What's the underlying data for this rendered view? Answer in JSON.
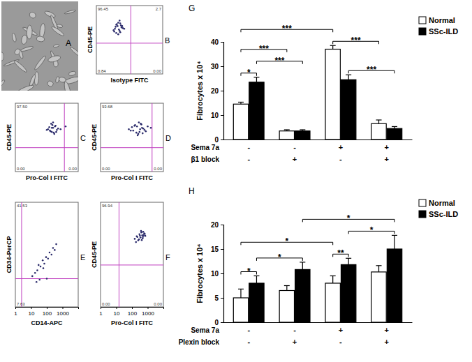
{
  "chart_data": [
    {
      "type": "image",
      "panel": "A"
    },
    {
      "type": "scatter",
      "panel": "B",
      "x_label": "Isotype FITC",
      "y_label": "CD45-PE",
      "xlim": [
        0,
        100
      ],
      "ylim": [
        0,
        100
      ],
      "tick_labels": false,
      "color": "#2b2b6b",
      "gate": {
        "x": 52,
        "y": 45
      },
      "quadrants": {
        "top_left": "96.45",
        "top_right": "2.7",
        "bottom_left": "0.84",
        "bottom_right": "0.00"
      },
      "x": [
        28,
        32,
        35,
        30,
        38,
        26,
        33,
        40,
        36,
        29,
        31,
        34,
        37,
        42,
        27,
        35,
        30,
        39,
        33,
        36
      ],
      "y": [
        66,
        70,
        63,
        72,
        68,
        64,
        75,
        67,
        61,
        69,
        73,
        65,
        71,
        66,
        62,
        78,
        60,
        70,
        58,
        74
      ]
    },
    {
      "type": "scatter",
      "panel": "C",
      "x_label": "Pro-Col I FITC",
      "y_label": "CD45-PE",
      "xlim": [
        0,
        100
      ],
      "ylim": [
        0,
        100
      ],
      "tick_labels": false,
      "color": "#2b2b6b",
      "gate": {
        "x": 78,
        "y": 35
      },
      "quadrants": {
        "top_left": "97.50",
        "bottom_left": "0.00",
        "bottom_right": "0.00"
      },
      "x": [
        55,
        60,
        58,
        63,
        52,
        66,
        57,
        61,
        54,
        68,
        59,
        62,
        56,
        64,
        50,
        60,
        65,
        58,
        72,
        80
      ],
      "y": [
        60,
        64,
        58,
        66,
        62,
        61,
        70,
        57,
        65,
        63,
        68,
        55,
        59,
        67,
        61,
        72,
        58,
        64,
        62,
        66
      ]
    },
    {
      "type": "scatter",
      "panel": "D",
      "x_label": "Pro-Col I FITC",
      "y_label": "CD45-PE",
      "xlim": [
        0,
        100
      ],
      "ylim": [
        0,
        100
      ],
      "tick_labels": false,
      "color": "#2b2b6b",
      "gate": {
        "x": 82,
        "y": 35
      },
      "quadrants": {
        "top_left": "93.68",
        "bottom_left": "0.00",
        "bottom_right": "0.00"
      },
      "x": [
        45,
        52,
        58,
        62,
        66,
        70,
        55,
        60,
        64,
        68,
        72,
        50,
        57,
        63,
        75,
        48,
        61,
        67,
        80,
        54,
        59,
        65
      ],
      "y": [
        62,
        60,
        66,
        58,
        64,
        61,
        68,
        55,
        70,
        63,
        59,
        65,
        57,
        62,
        66,
        60,
        72,
        56,
        64,
        67,
        53,
        69
      ]
    },
    {
      "type": "scatter",
      "panel": "E",
      "x_label": "CD14-APC",
      "y_label": "CD34-PerCP",
      "log": true,
      "xlim": [
        1,
        10000
      ],
      "ylim": [
        1,
        10000
      ],
      "xticks": [
        1,
        10,
        100,
        1000
      ],
      "tick_labels": "x",
      "color": "#2b2b6b",
      "gate": {
        "x": 2.5,
        "y": 12
      },
      "quadrants": {
        "top_left": "41.53",
        "bottom_left": "7.63"
      },
      "x": [
        12,
        18,
        25,
        30,
        40,
        55,
        70,
        90,
        120,
        150,
        200,
        250,
        320,
        400,
        22,
        35,
        60,
        100
      ],
      "y": [
        15,
        20,
        25,
        40,
        35,
        60,
        45,
        80,
        70,
        120,
        100,
        180,
        150,
        250,
        9,
        11,
        30,
        12
      ]
    },
    {
      "type": "scatter",
      "panel": "F",
      "x_label": "Pro-Col I FITC",
      "y_label": "CD45-PE",
      "log": true,
      "xlim": [
        1,
        10000
      ],
      "ylim": [
        1,
        10000
      ],
      "xticks": [
        1,
        10,
        100,
        1000
      ],
      "tick_labels": "x",
      "color": "#2b2b6b",
      "gate": {
        "x": 15,
        "y": 40
      },
      "quadrants": {
        "top_left": "96.94",
        "bottom_left": "0.00",
        "bottom_right": "0.00"
      },
      "x": [
        150,
        200,
        250,
        300,
        350,
        400,
        450,
        500,
        600,
        700,
        180,
        280,
        380,
        480,
        550,
        650,
        220,
        320,
        420,
        520
      ],
      "y": [
        400,
        500,
        350,
        600,
        450,
        700,
        550,
        480,
        650,
        520,
        300,
        380,
        800,
        420,
        560,
        620,
        470,
        530,
        360,
        750
      ]
    },
    {
      "type": "bar",
      "panel": "G",
      "y_label": "Fibrocytes x 10⁴",
      "categories": [
        null,
        null,
        null,
        null
      ],
      "ylim": [
        0,
        40
      ],
      "yticks": [
        0,
        10,
        20,
        30,
        40
      ],
      "legend": "top-right",
      "series": [
        {
          "name": "Normal",
          "color": "#ffffff",
          "values": [
            14.5,
            3.5,
            37,
            6.5
          ],
          "errors": [
            0.8,
            0.5,
            1.5,
            1.5
          ]
        },
        {
          "name": "SSc-ILD",
          "color": "#000000",
          "values": [
            23.5,
            3.5,
            24.5,
            4.5
          ],
          "errors": [
            2,
            0.5,
            2,
            0.8
          ]
        }
      ],
      "conditions": [
        {
          "name": "Sema 7a",
          "values": [
            "-",
            "-",
            "+",
            "+"
          ]
        },
        {
          "name": "β1 block",
          "values": [
            "-",
            "+",
            "-",
            "+"
          ]
        }
      ],
      "significance": [
        {
          "from": [
            0,
            0
          ],
          "to": [
            0,
            1
          ],
          "label": "*"
        },
        {
          "from": [
            0,
            1
          ],
          "to": [
            1,
            1
          ],
          "label": "***"
        },
        {
          "from": [
            0,
            0
          ],
          "to": [
            1,
            0
          ],
          "label": "***"
        },
        {
          "from": [
            2,
            1
          ],
          "to": [
            3,
            1
          ],
          "label": "***"
        },
        {
          "from": [
            2,
            0
          ],
          "to": [
            3,
            0
          ],
          "label": "***"
        },
        {
          "from": [
            0,
            0
          ],
          "to": [
            2,
            0
          ],
          "label": "***"
        }
      ]
    },
    {
      "type": "bar",
      "panel": "H",
      "y_label": "Fibrocytes x 10⁴",
      "categories": [
        null,
        null,
        null,
        null
      ],
      "ylim": [
        0,
        20
      ],
      "yticks": [
        0,
        5,
        10,
        15,
        20
      ],
      "legend": "top-right",
      "series": [
        {
          "name": "Normal",
          "color": "#ffffff",
          "values": [
            5,
            6.5,
            8,
            10.3
          ],
          "errors": [
            1.8,
            1,
            1.5,
            1.3
          ]
        },
        {
          "name": "SSc-ILD",
          "color": "#000000",
          "values": [
            8,
            10.8,
            11.8,
            15
          ],
          "errors": [
            1.5,
            1.5,
            1.3,
            2.8
          ]
        }
      ],
      "conditions": [
        {
          "name": "Sema 7a",
          "values": [
            "-",
            "-",
            "+",
            "+"
          ]
        },
        {
          "name": "Plexin block",
          "values": [
            "-",
            "+",
            "-",
            "+"
          ]
        }
      ],
      "significance": [
        {
          "from": [
            0,
            0
          ],
          "to": [
            0,
            1
          ],
          "label": "*"
        },
        {
          "from": [
            2,
            0
          ],
          "to": [
            2,
            1
          ],
          "label": "**"
        },
        {
          "from": [
            0,
            1
          ],
          "to": [
            1,
            1
          ],
          "label": "*"
        },
        {
          "from": [
            2,
            1
          ],
          "to": [
            3,
            1
          ],
          "label": "*"
        },
        {
          "from": [
            0,
            0
          ],
          "to": [
            2,
            0
          ],
          "label": "*"
        },
        {
          "from": [
            1,
            1
          ],
          "to": [
            3,
            1
          ],
          "label": "*"
        }
      ]
    }
  ]
}
